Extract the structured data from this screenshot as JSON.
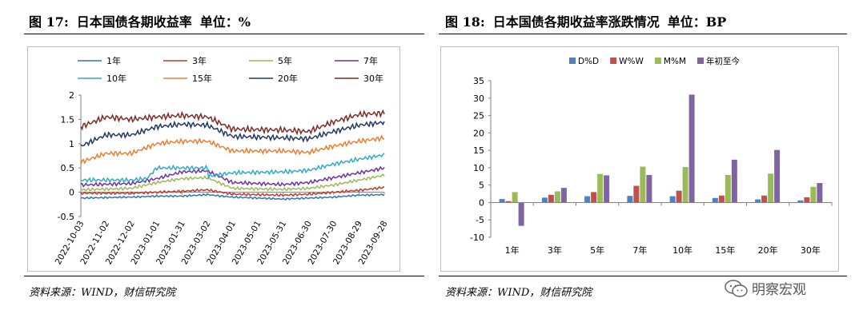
{
  "left": {
    "fig_label": "图 17:",
    "fig_title": "日本国债各期收益率",
    "fig_unit": "单位：%",
    "source": "资料来源：WIND，财信研究院"
  },
  "right": {
    "fig_label": "图 18:",
    "fig_title": "日本国债各期收益率涨跌情况",
    "fig_unit": "单位：BP",
    "source": "资料来源：WIND，财信研究院"
  },
  "watermark": {
    "text": "明察宏观",
    "icon": "wechat-icon"
  },
  "chart_data": [
    {
      "type": "line",
      "x_ticks": [
        "2022-10-03",
        "2022-11-02",
        "2022-12-02",
        "2023-01-01",
        "2023-01-31",
        "2023-03-02",
        "2023-04-01",
        "2023-05-01",
        "2023-05-31",
        "2023-06-30",
        "2023-07-30",
        "2023-08-29",
        "2023-09-28"
      ],
      "ylim": [
        -0.5,
        2
      ],
      "y_ticks": [
        "-0.5",
        "0",
        "0.5",
        "1",
        "1.5",
        "2"
      ],
      "grid": false,
      "legend": "top",
      "series": [
        {
          "name": "1年",
          "color": "#2e75b6",
          "anchors": [
            [
              0,
              -0.12
            ],
            [
              2,
              -0.1
            ],
            [
              3,
              -0.08
            ],
            [
              4,
              -0.08
            ],
            [
              5,
              -0.05
            ],
            [
              6,
              -0.1
            ],
            [
              8,
              -0.14
            ],
            [
              9,
              -0.12
            ],
            [
              10,
              -0.1
            ],
            [
              11,
              -0.06
            ],
            [
              12,
              -0.05
            ]
          ]
        },
        {
          "name": "3年",
          "color": "#c0392b",
          "anchors": [
            [
              0,
              -0.02
            ],
            [
              2,
              -0.02
            ],
            [
              3,
              0.0
            ],
            [
              4,
              0.02
            ],
            [
              5,
              0.05
            ],
            [
              6,
              -0.04
            ],
            [
              8,
              -0.06
            ],
            [
              9,
              -0.04
            ],
            [
              10,
              0.0
            ],
            [
              11,
              0.04
            ],
            [
              12,
              0.1
            ]
          ]
        },
        {
          "name": "5年",
          "color": "#9bbb59",
          "anchors": [
            [
              0,
              0.05
            ],
            [
              2,
              0.08
            ],
            [
              3,
              0.2
            ],
            [
              4,
              0.28
            ],
            [
              5,
              0.3
            ],
            [
              6,
              0.08
            ],
            [
              8,
              0.06
            ],
            [
              9,
              0.08
            ],
            [
              10,
              0.15
            ],
            [
              11,
              0.25
            ],
            [
              12,
              0.35
            ]
          ]
        },
        {
          "name": "7年",
          "color": "#7030a0",
          "anchors": [
            [
              0,
              0.15
            ],
            [
              2,
              0.18
            ],
            [
              3,
              0.28
            ],
            [
              4,
              0.42
            ],
            [
              5,
              0.44
            ],
            [
              6,
              0.2
            ],
            [
              8,
              0.16
            ],
            [
              9,
              0.2
            ],
            [
              10,
              0.3
            ],
            [
              11,
              0.4
            ],
            [
              12,
              0.5
            ]
          ]
        },
        {
          "name": "10年",
          "color": "#31a9c9",
          "anchors": [
            [
              0,
              0.25
            ],
            [
              2,
              0.25
            ],
            [
              2.6,
              0.28
            ],
            [
              3,
              0.5
            ],
            [
              4,
              0.5
            ],
            [
              5,
              0.5
            ],
            [
              5.05,
              0.33
            ],
            [
              6,
              0.4
            ],
            [
              8,
              0.42
            ],
            [
              9,
              0.45
            ],
            [
              10,
              0.58
            ],
            [
              11,
              0.68
            ],
            [
              12,
              0.77
            ]
          ]
        },
        {
          "name": "15年",
          "color": "#ed7d31",
          "anchors": [
            [
              0,
              0.62
            ],
            [
              1,
              0.8
            ],
            [
              2,
              0.8
            ],
            [
              3,
              1.0
            ],
            [
              4,
              1.05
            ],
            [
              5,
              1.05
            ],
            [
              6,
              0.85
            ],
            [
              8,
              0.85
            ],
            [
              9,
              0.82
            ],
            [
              10,
              0.95
            ],
            [
              11,
              1.05
            ],
            [
              12,
              1.12
            ]
          ]
        },
        {
          "name": "20年",
          "color": "#1f3864",
          "anchors": [
            [
              0,
              0.95
            ],
            [
              1,
              1.18
            ],
            [
              2,
              1.18
            ],
            [
              3,
              1.35
            ],
            [
              4,
              1.4
            ],
            [
              5,
              1.38
            ],
            [
              6,
              1.15
            ],
            [
              8,
              1.12
            ],
            [
              9,
              1.1
            ],
            [
              10,
              1.25
            ],
            [
              11,
              1.38
            ],
            [
              12,
              1.44
            ]
          ]
        },
        {
          "name": "30年",
          "color": "#7b2c25",
          "anchors": [
            [
              0,
              1.35
            ],
            [
              1,
              1.55
            ],
            [
              2,
              1.5
            ],
            [
              3,
              1.55
            ],
            [
              4,
              1.58
            ],
            [
              5,
              1.55
            ],
            [
              6,
              1.3
            ],
            [
              8,
              1.28
            ],
            [
              9,
              1.25
            ],
            [
              10,
              1.45
            ],
            [
              11,
              1.6
            ],
            [
              12,
              1.63
            ]
          ]
        }
      ]
    },
    {
      "type": "bar",
      "categories": [
        "1年",
        "3年",
        "5年",
        "7年",
        "10年",
        "15年",
        "20年",
        "30年"
      ],
      "ylim": [
        -10,
        35
      ],
      "y_ticks": [
        "-10",
        "-5",
        "0",
        "5",
        "10",
        "15",
        "20",
        "25",
        "30",
        "35"
      ],
      "grid": false,
      "legend": "top",
      "series": [
        {
          "name": "D%D",
          "color": "#4f81bd",
          "values": [
            1,
            1.4,
            1.8,
            1.9,
            1.8,
            1.3,
            0.9,
            0.6
          ]
        },
        {
          "name": "W%W",
          "color": "#c0504d",
          "values": [
            0.4,
            2.2,
            3,
            4.8,
            3.4,
            2,
            2,
            1.5
          ]
        },
        {
          "name": "M%M",
          "color": "#9bbb59",
          "values": [
            3,
            3.2,
            8.2,
            10.3,
            10.2,
            7.9,
            8.3,
            4.5
          ]
        },
        {
          "name": "年初至今",
          "color": "#8064a2",
          "values": [
            -6.7,
            4.2,
            7.8,
            7.9,
            31,
            12.3,
            15.1,
            5.6
          ]
        }
      ]
    }
  ]
}
